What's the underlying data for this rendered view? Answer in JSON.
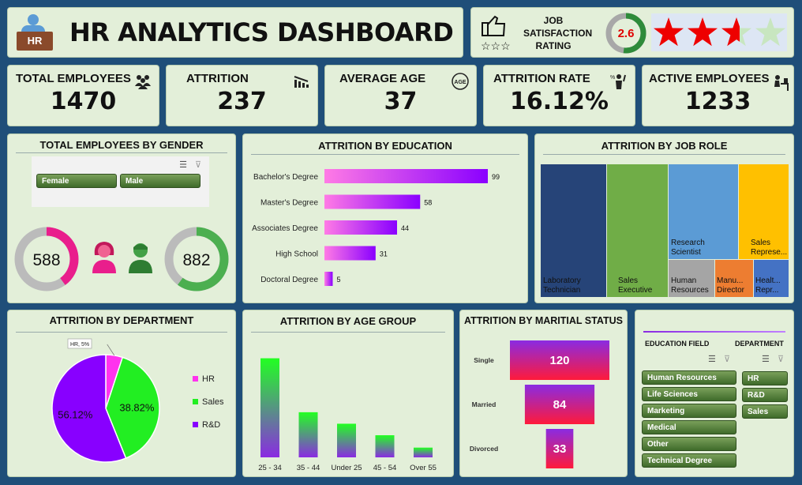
{
  "header": {
    "title": "HR ANALYTICS DASHBOARD",
    "logo_text": "HR"
  },
  "satisfaction": {
    "label_lines": [
      "JOB",
      "SATISFACTION",
      "RATING"
    ],
    "value": "2.6",
    "rating": 2.6,
    "max": 5
  },
  "kpis": [
    {
      "label": "TOTAL EMPLOYEES",
      "value": "1470",
      "icon": "people-icon"
    },
    {
      "label": "ATTRITION",
      "value": "237",
      "icon": "attrition-icon"
    },
    {
      "label": "AVERAGE AGE",
      "value": "37",
      "icon": "age-icon"
    },
    {
      "label": "ATTRITION RATE",
      "value": "16.12%",
      "icon": "rate-icon"
    },
    {
      "label": "ACTIVE EMPLOYEES",
      "value": "1233",
      "icon": "desk-worker-icon"
    }
  ],
  "gender": {
    "title": "TOTAL EMPLOYEES BY GENDER",
    "slicer": [
      "Female",
      "Male"
    ],
    "female": {
      "label": "588",
      "value": 588,
      "color": "#e91e8c"
    },
    "male": {
      "label": "882",
      "value": 882,
      "color": "#4caf50"
    },
    "total": 1470
  },
  "colors": {
    "bar_grad_start": "#ff7be5",
    "bar_grad_end": "#8a00ff",
    "dept_hr": "#ff33ee",
    "dept_sales": "#22ee22",
    "dept_rd": "#8800ff"
  },
  "chart_data": [
    {
      "id": "education",
      "type": "bar",
      "orientation": "horizontal",
      "title": "ATTRITION BY EDUCATION",
      "categories": [
        "Bachelor's Degree",
        "Master's Degree",
        "Associates Degree",
        "High School",
        "Doctoral Degree"
      ],
      "values": [
        99,
        58,
        44,
        31,
        5
      ],
      "xlim": [
        0,
        110
      ]
    },
    {
      "id": "jobrole",
      "type": "treemap",
      "title": "ATTRITION BY JOB ROLE",
      "categories": [
        "Laboratory Technician",
        "Sales Executive",
        "Research Scientist",
        "Sales Represe...",
        "Human Resources",
        "Manu... Director",
        "Healt... Repr..."
      ],
      "colors": [
        "#264478",
        "#70ad47",
        "#5b9bd5",
        "#ffc000",
        "#a5a5a5",
        "#ed7d31",
        "#4472c4"
      ]
    },
    {
      "id": "department",
      "type": "pie",
      "title": "ATTRITION BY DEPARTMENT",
      "categories": [
        "HR",
        "Sales",
        "R&D"
      ],
      "values": [
        5.06,
        38.82,
        56.12
      ],
      "data_labels": [
        "HR, 5%",
        "38.82%",
        "56.12%"
      ],
      "legend": "right"
    },
    {
      "id": "agegroup",
      "type": "bar",
      "title": "ATTRITION BY AGE GROUP",
      "categories": [
        "25 - 34",
        "35 - 44",
        "Under 25",
        "45 - 54",
        "Over 55"
      ],
      "values": [
        112,
        51,
        38,
        25,
        11
      ],
      "ylim": [
        0,
        125
      ]
    },
    {
      "id": "marital",
      "type": "funnel",
      "title": "ATTRITION BY MARITIAL STATUS",
      "categories": [
        "Single",
        "Married",
        "Divorced"
      ],
      "values": [
        120,
        84,
        33
      ]
    }
  ],
  "filters": {
    "education_head": "EDUCATION FIELD",
    "department_head": "DEPARTMENT",
    "education_fields": [
      "Human Resources",
      "Life Sciences",
      "Marketing",
      "Medical",
      "Other",
      "Technical Degree"
    ],
    "departments": [
      "HR",
      "R&D",
      "Sales"
    ]
  }
}
